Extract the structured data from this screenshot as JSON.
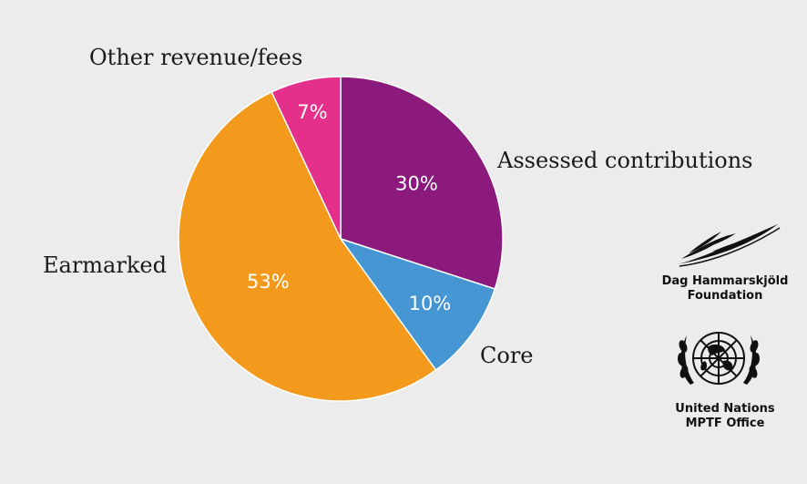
{
  "chart_data": {
    "type": "pie",
    "categories": [
      "Assessed contributions",
      "Core",
      "Earmarked",
      "Other revenue/fees"
    ],
    "values": [
      30,
      10,
      53,
      7
    ],
    "value_labels": [
      "30%",
      "10%",
      "53%",
      "7%"
    ],
    "colors": [
      "#8b1a7c",
      "#4696d3",
      "#f39a1d",
      "#e4308a"
    ],
    "start_angle": "12 o'clock",
    "direction": "clockwise"
  },
  "logos": {
    "dhf": {
      "name_line1": "Dag Hammarskjöld",
      "name_line2": "Foundation"
    },
    "un": {
      "name_line1": "United Nations",
      "name_line2": "MPTF Office"
    }
  }
}
